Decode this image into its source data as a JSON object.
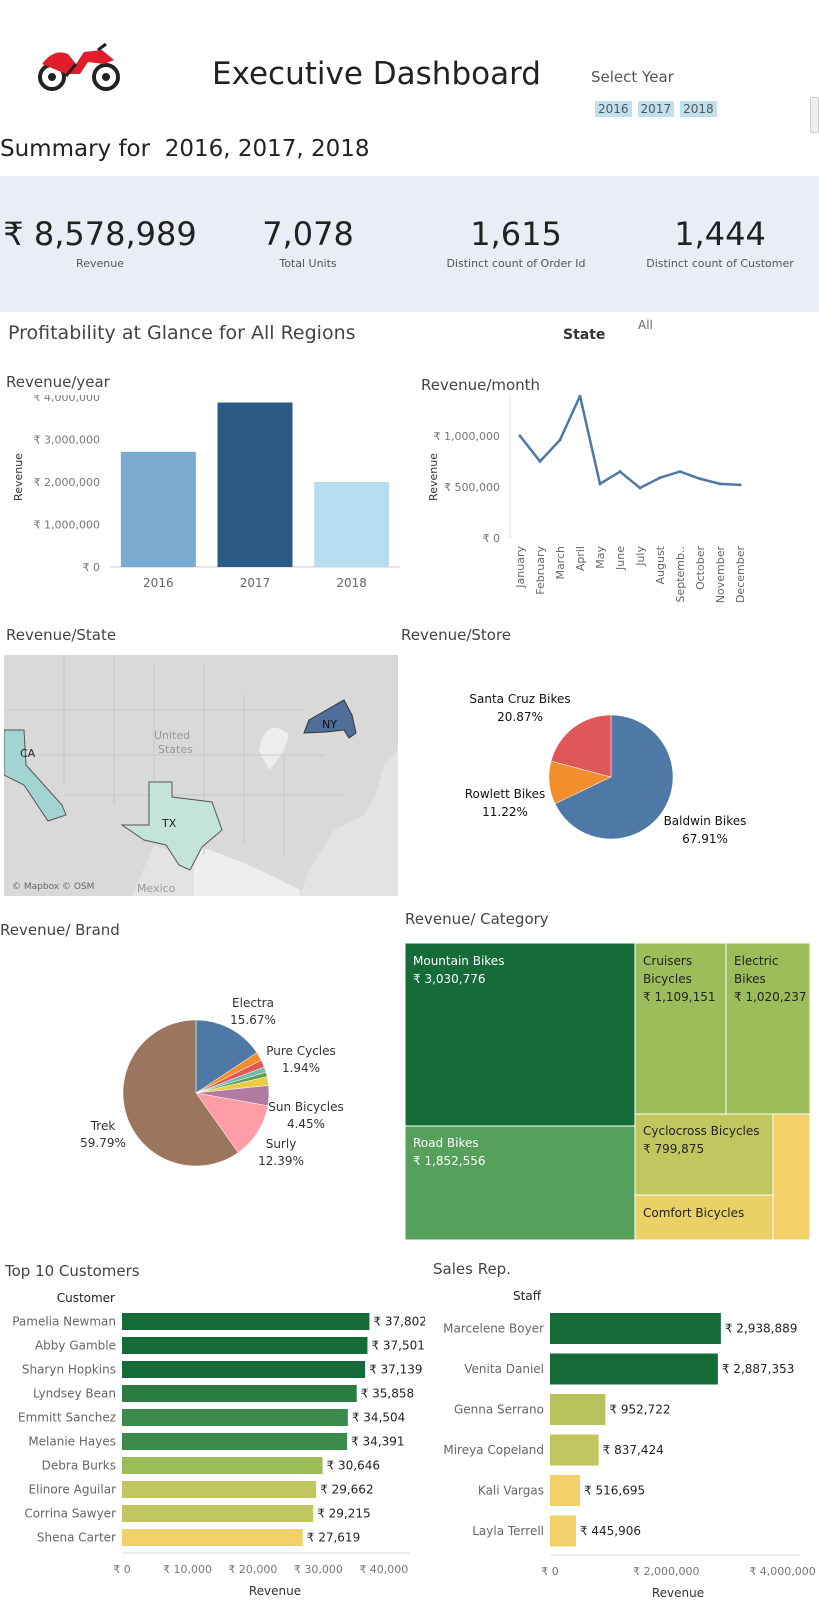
{
  "header": {
    "title": "Executive Dashboard",
    "select_year_label": "Select Year",
    "years": [
      "2016",
      "2017",
      "2018"
    ],
    "summary": "Summary for  2016, 2017, 2018"
  },
  "kpis": [
    {
      "value": "₹ 8,578,989",
      "label": "Revenue"
    },
    {
      "value": "7,078",
      "label": "Total Units"
    },
    {
      "value": "1,615",
      "label": "Distinct count of Order Id"
    },
    {
      "value": "1,444",
      "label": "Distinct count of Customer"
    }
  ],
  "profitability": {
    "title": "Profitability at Glance for All Regions",
    "state_label": "State",
    "state_value": "All"
  },
  "colors": {
    "blue_dark": "#2b5a87",
    "blue_mid": "#7aaad0",
    "blue_light": "#b8ddf0",
    "line": "#4e79a7",
    "green_dark": "#166c39",
    "green_mid": "#55a05a",
    "green_light": "#9dbd5a",
    "olive": "#c1c75e",
    "yellow": "#f2d16b"
  },
  "chart_data": [
    {
      "id": "revenue_year",
      "type": "bar",
      "title": "Revenue/year",
      "ylabel": "Revenue",
      "categories": [
        "2016",
        "2017",
        "2018"
      ],
      "values": [
        2710000,
        3870000,
        2000000
      ],
      "colors": [
        "#7aaad0",
        "#2b5a87",
        "#b8ddf0"
      ],
      "yticks": [
        0,
        1000000,
        2000000,
        3000000,
        4000000
      ],
      "ytick_labels": [
        "₹ 0",
        "₹ 1,000,000",
        "₹ 2,000,000",
        "₹ 3,000,000",
        "₹ 4,000,000"
      ],
      "ylim": [
        0,
        4000000
      ]
    },
    {
      "id": "revenue_month",
      "type": "line",
      "title": "Revenue/month",
      "ylabel": "Revenue",
      "categories": [
        "January",
        "February",
        "March",
        "April",
        "May",
        "June",
        "July",
        "August",
        "Septemb..",
        "October",
        "November",
        "December"
      ],
      "values": [
        1000000,
        750000,
        960000,
        1390000,
        530000,
        650000,
        490000,
        590000,
        650000,
        580000,
        530000,
        520000
      ],
      "yticks": [
        0,
        500000,
        1000000
      ],
      "ytick_labels": [
        "₹ 0",
        "₹ 500,000",
        "₹ 1,000,000"
      ],
      "ylim": [
        0,
        1400000
      ]
    },
    {
      "id": "revenue_state",
      "type": "map",
      "title": "Revenue/State",
      "states": [
        "CA",
        "TX",
        "NY"
      ],
      "map_labels": [
        "United",
        "States",
        "Mexico"
      ],
      "attribution": "© Mapbox © OSM"
    },
    {
      "id": "revenue_store",
      "type": "pie",
      "title": "Revenue/Store",
      "labels": [
        "Baldwin Bikes",
        "Rowlett Bikes",
        "Santa Cruz Bikes"
      ],
      "values": [
        67.91,
        11.22,
        20.87
      ],
      "value_labels": [
        "67.91%",
        "11.22%",
        "20.87%"
      ],
      "colors": [
        "#4e79a7",
        "#f28e2b",
        "#e15759"
      ]
    },
    {
      "id": "revenue_brand",
      "type": "pie",
      "title": "Revenue/ Brand",
      "labels": [
        "Electra",
        "",
        "",
        "",
        "",
        "Pure Cycles",
        "Sun Bicycles",
        "Surly",
        "Trek"
      ],
      "values": [
        15.67,
        1.94,
        1.6,
        1.2,
        1.0,
        1.94,
        4.45,
        12.39,
        59.79
      ],
      "colors": [
        "#4e79a7",
        "#f28e2b",
        "#e15759",
        "#76b7b2",
        "#59a14f",
        "#edc948",
        "#b07aa1",
        "#ff9da7",
        "#9c755f"
      ],
      "annotations": [
        {
          "name": "Electra",
          "pct": "15.67%"
        },
        {
          "name": "Pure Cycles",
          "pct": "1.94%"
        },
        {
          "name": "Sun Bicycles",
          "pct": "4.45%"
        },
        {
          "name": "Surly",
          "pct": "12.39%"
        },
        {
          "name": "Trek",
          "pct": "59.79%"
        }
      ]
    },
    {
      "id": "revenue_category",
      "type": "treemap",
      "title": "Revenue/ Category",
      "items": [
        {
          "name": "Mountain Bikes",
          "value": "₹ 3,030,776",
          "color": "#166c39"
        },
        {
          "name": "Road Bikes",
          "value": "₹ 1,852,556",
          "color": "#55a05a"
        },
        {
          "name": "Cruisers Bicycles",
          "value": "₹ 1,109,151",
          "color": "#9dbd5a"
        },
        {
          "name": "Electric Bikes",
          "value": "₹ 1,020,237",
          "color": "#9dbd5a"
        },
        {
          "name": "Cyclocross Bicycles",
          "value": "₹ 799,875",
          "color": "#c1c75e"
        },
        {
          "name": "Comfort Bicycles",
          "value": "",
          "color": "#ead066"
        },
        {
          "name": "",
          "value": "",
          "color": "#f2d16b"
        }
      ]
    },
    {
      "id": "top_customers",
      "type": "bar",
      "orientation": "horizontal",
      "title": "Top 10 Customers",
      "column_header": "Customer",
      "xlabel": "Revenue",
      "categories": [
        "Pamelia Newman",
        "Abby Gamble",
        "Sharyn Hopkins",
        "Lyndsey Bean",
        "Emmitt Sanchez",
        "Melanie Hayes",
        "Debra Burks",
        "Elinore Aguilar",
        "Corrina Sawyer",
        "Shena Carter"
      ],
      "values": [
        37802,
        37501,
        37139,
        35858,
        34504,
        34391,
        30646,
        29662,
        29215,
        27619
      ],
      "value_labels": [
        "₹ 37,802",
        "₹ 37,501",
        "₹ 37,139",
        "₹ 35,858",
        "₹ 34,504",
        "₹ 34,391",
        "₹ 30,646",
        "₹ 29,662",
        "₹ 29,215",
        "₹ 27,619"
      ],
      "colors": [
        "#166c39",
        "#166c39",
        "#166c39",
        "#2a7d43",
        "#3a8b4c",
        "#3a8b4c",
        "#9dbd5a",
        "#c1c75e",
        "#c1c75e",
        "#f2d16b"
      ],
      "xticks": [
        0,
        10000,
        20000,
        30000,
        40000
      ],
      "xtick_labels": [
        "₹ 0",
        "₹ 10,000",
        "₹ 20,000",
        "₹ 30,000",
        "₹ 40,000"
      ],
      "xlim": [
        0,
        44000
      ]
    },
    {
      "id": "sales_rep",
      "type": "bar",
      "orientation": "horizontal",
      "title": "Sales Rep.",
      "column_header": "Staff",
      "xlabel": "Revenue",
      "categories": [
        "Marcelene Boyer",
        "Venita Daniel",
        "Genna Serrano",
        "Mireya Copeland",
        "Kali Vargas",
        "Layla Terrell"
      ],
      "values": [
        2938889,
        2887353,
        952722,
        837424,
        516695,
        445906
      ],
      "value_labels": [
        "₹ 2,938,889",
        "₹ 2,887,353",
        "₹ 952,722",
        "₹ 837,424",
        "₹ 516,695",
        "₹ 445,906"
      ],
      "colors": [
        "#166c39",
        "#166c39",
        "#b8c35c",
        "#c1c75e",
        "#f2d16b",
        "#f2d16b"
      ],
      "xticks": [
        0,
        2000000,
        4000000
      ],
      "xtick_labels": [
        "₹ 0",
        "₹ 2,000,000",
        "₹ 4,000,000"
      ],
      "xlim": [
        0,
        4300000
      ]
    }
  ]
}
